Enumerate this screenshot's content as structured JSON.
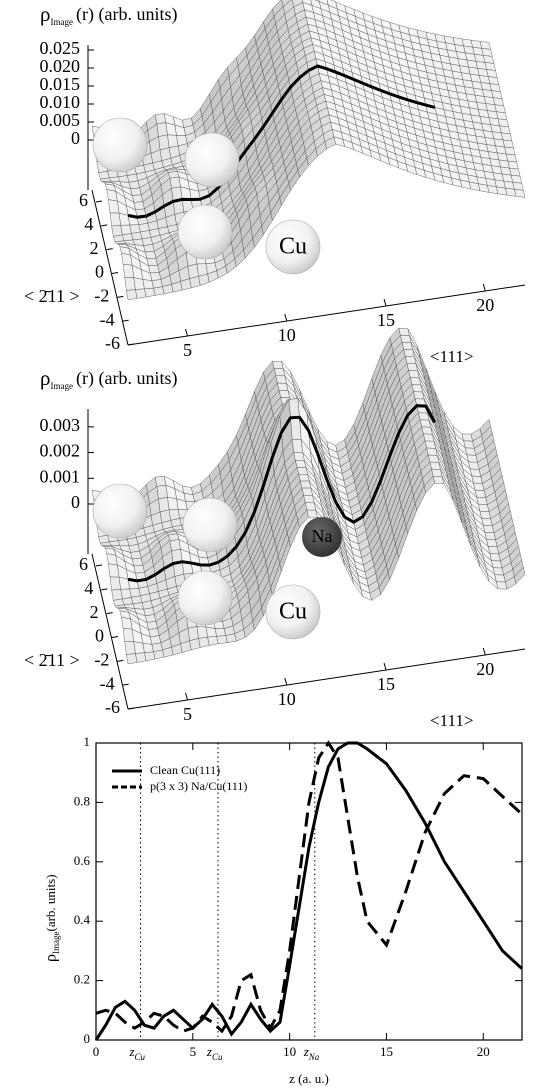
{
  "chart_data": [
    {
      "type": "surface3d",
      "title": "ρ",
      "title_subscript": "Image",
      "title_suffix": "(r) (arb. units)",
      "zlim": [
        0,
        0.025
      ],
      "zticks": [
        0,
        0.005,
        {
          "value": 0.01,
          "label": "0.010"
        },
        0.015,
        {
          "value": 0.02,
          "label": "0.020"
        },
        0.025
      ],
      "ylim": [
        -6,
        6
      ],
      "yticks": [
        6,
        4,
        2,
        0,
        -2,
        -4,
        -6
      ],
      "ylabel": "< 2̄11 >",
      "xlim": [
        2,
        22
      ],
      "xticks": [
        5,
        10,
        15,
        20
      ],
      "xlabel": "<111>",
      "annotations": [
        {
          "text": "Cu"
        }
      ]
    },
    {
      "type": "surface3d",
      "title": "ρ",
      "title_subscript": "Image",
      "title_suffix": "(r) (arb. units)",
      "zlim": [
        0,
        0.0035
      ],
      "zticks": [
        0,
        0.001,
        0.002,
        0.003
      ],
      "ylim": [
        -6,
        6
      ],
      "yticks": [
        6,
        4,
        2,
        0,
        -2,
        -4,
        -6
      ],
      "ylabel": "< 2̄11 >",
      "xlim": [
        2,
        22
      ],
      "xticks": [
        5,
        10,
        15,
        20
      ],
      "xlabel": "<111>",
      "annotations": [
        {
          "text": "Na"
        },
        {
          "text": "Cu"
        }
      ]
    },
    {
      "type": "line",
      "ylabel": "ρ",
      "ylabel_subscript": "Image",
      "ylabel_suffix": " (arb. units)",
      "xlabel": "z (a. u.)",
      "xlim": [
        0,
        22
      ],
      "ylim": [
        0,
        1
      ],
      "xticks": [
        0,
        5,
        10,
        15,
        20
      ],
      "yticks": [
        0,
        0.2,
        0.4,
        0.6,
        0.8,
        1
      ],
      "legend": "upper left",
      "x": [
        0,
        0.5,
        1,
        1.5,
        2,
        2.5,
        3,
        3.5,
        4,
        4.5,
        5,
        5.5,
        6,
        6.5,
        7,
        7.5,
        8,
        8.5,
        9,
        9.5,
        10,
        10.5,
        11,
        11.5,
        12,
        12.5,
        13,
        13.5,
        14,
        15,
        16,
        17,
        18,
        19,
        20,
        21,
        22
      ],
      "series": [
        {
          "name": "Clean Cu(111)",
          "color": "#000000",
          "dash": "solid",
          "values": [
            0,
            0.05,
            0.11,
            0.13,
            0.1,
            0.05,
            0.04,
            0.08,
            0.1,
            0.07,
            0.04,
            0.07,
            0.12,
            0.08,
            0.02,
            0.06,
            0.12,
            0.07,
            0.03,
            0.06,
            0.25,
            0.45,
            0.65,
            0.8,
            0.92,
            0.98,
            1.0,
            1.0,
            0.98,
            0.93,
            0.84,
            0.73,
            0.6,
            0.5,
            0.4,
            0.3,
            0.24
          ]
        },
        {
          "name": "p(3 x 3) Na/Cu(111)",
          "color": "#000000",
          "dash": "dashed",
          "values": [
            0.09,
            0.1,
            0.09,
            0.06,
            0.04,
            0.06,
            0.09,
            0.08,
            0.05,
            0.03,
            0.04,
            0.08,
            0.06,
            0.03,
            0.08,
            0.2,
            0.22,
            0.1,
            0.04,
            0.1,
            0.3,
            0.55,
            0.8,
            0.95,
            1.0,
            0.95,
            0.75,
            0.55,
            0.4,
            0.32,
            0.5,
            0.7,
            0.83,
            0.89,
            0.88,
            0.82,
            0.76
          ]
        }
      ],
      "vlines": [
        {
          "x": 2.3,
          "label": "z",
          "subscript": "Cu"
        },
        {
          "x": 6.3,
          "label": "z",
          "subscript": "Cu"
        },
        {
          "x": 11.3,
          "label": "z",
          "subscript": "Na"
        }
      ]
    }
  ]
}
